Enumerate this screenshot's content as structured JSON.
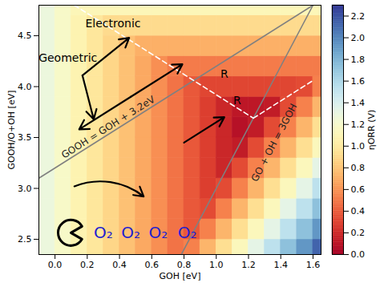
{
  "chart_data": {
    "type": "heatmap",
    "x_label": "GOH [eV]",
    "y_label": "GOOH/O+OH [eV]",
    "xlim": [
      -0.1,
      1.65
    ],
    "ylim": [
      2.35,
      4.8
    ],
    "xticks": [
      {
        "value": 0,
        "label": "0.0"
      },
      {
        "value": 0.2,
        "label": "0.2"
      },
      {
        "value": 0.4,
        "label": "0.4"
      },
      {
        "value": 0.6,
        "label": "0.6"
      },
      {
        "value": 0.8,
        "label": "0.8"
      },
      {
        "value": 1,
        "label": "1.0"
      },
      {
        "value": 1.2,
        "label": "1.2"
      },
      {
        "value": 1.4,
        "label": "1.4"
      },
      {
        "value": 1.6,
        "label": "1.6"
      }
    ],
    "yticks": [
      {
        "value": 2.5,
        "label": "2.5"
      },
      {
        "value": 3,
        "label": "3.0"
      },
      {
        "value": 3.5,
        "label": "3.5"
      },
      {
        "value": 4,
        "label": "4.0"
      },
      {
        "value": 4.5,
        "label": "4.5"
      }
    ],
    "color": "RdYlBu",
    "heatmap": {
      "x_edges": [
        -0.1,
        0.0,
        0.1,
        0.2,
        0.3,
        0.4,
        0.5,
        0.6,
        0.7,
        0.8,
        0.9,
        1.0,
        1.1,
        1.2,
        1.3,
        1.4,
        1.5,
        1.6,
        1.7
      ],
      "y_edges": [
        2.3,
        2.5,
        2.7,
        2.9,
        3.1,
        3.3,
        3.5,
        3.7,
        3.9,
        4.1,
        4.3,
        4.5,
        4.7,
        4.9
      ],
      "values": [
        [
          1.28,
          1.18,
          1.08,
          0.98,
          0.88,
          0.78,
          0.68,
          0.58,
          0.48,
          0.53,
          0.73,
          0.93,
          1.13,
          1.33,
          1.53,
          1.73,
          1.93,
          2.13
        ],
        [
          1.28,
          1.18,
          1.08,
          0.98,
          0.88,
          0.78,
          0.68,
          0.58,
          0.48,
          0.38,
          0.53,
          0.73,
          0.93,
          1.13,
          1.33,
          1.53,
          1.73,
          1.93
        ],
        [
          1.28,
          1.18,
          1.08,
          0.98,
          0.88,
          0.78,
          0.68,
          0.58,
          0.48,
          0.38,
          0.33,
          0.53,
          0.73,
          0.93,
          1.13,
          1.33,
          1.53,
          1.73
        ],
        [
          1.28,
          1.18,
          1.08,
          0.98,
          0.88,
          0.78,
          0.68,
          0.58,
          0.48,
          0.38,
          0.28,
          0.33,
          0.53,
          0.73,
          0.93,
          1.13,
          1.33,
          1.53
        ],
        [
          1.28,
          1.18,
          1.08,
          0.98,
          0.88,
          0.78,
          0.68,
          0.58,
          0.48,
          0.38,
          0.28,
          0.18,
          0.33,
          0.53,
          0.73,
          0.93,
          1.13,
          1.33
        ],
        [
          1.28,
          1.18,
          1.08,
          0.98,
          0.88,
          0.78,
          0.68,
          0.58,
          0.48,
          0.38,
          0.28,
          0.18,
          0.13,
          0.33,
          0.53,
          0.73,
          0.93,
          1.13
        ],
        [
          1.28,
          1.18,
          1.08,
          0.98,
          0.88,
          0.78,
          0.68,
          0.58,
          0.48,
          0.38,
          0.28,
          0.18,
          0.08,
          0.13,
          0.33,
          0.53,
          0.73,
          0.93
        ],
        [
          1.28,
          1.18,
          1.08,
          0.98,
          0.88,
          0.78,
          0.68,
          0.58,
          0.48,
          0.38,
          0.28,
          0.18,
          0.11,
          0.11,
          0.13,
          0.33,
          0.53,
          0.73
        ],
        [
          1.28,
          1.18,
          1.08,
          0.98,
          0.88,
          0.78,
          0.68,
          0.58,
          0.48,
          0.38,
          0.31,
          0.31,
          0.31,
          0.31,
          0.31,
          0.31,
          0.33,
          0.53
        ],
        [
          1.28,
          1.18,
          1.08,
          0.98,
          0.88,
          0.78,
          0.68,
          0.58,
          0.51,
          0.51,
          0.51,
          0.51,
          0.51,
          0.51,
          0.51,
          0.51,
          0.51,
          0.51
        ],
        [
          1.28,
          1.18,
          1.08,
          0.98,
          0.88,
          0.78,
          0.71,
          0.71,
          0.71,
          0.71,
          0.71,
          0.71,
          0.71,
          0.71,
          0.71,
          0.71,
          0.71,
          0.71
        ],
        [
          1.28,
          1.18,
          1.08,
          0.98,
          0.91,
          0.91,
          0.91,
          0.91,
          0.91,
          0.91,
          0.91,
          0.91,
          0.91,
          0.91,
          0.91,
          0.91,
          0.91,
          0.91
        ],
        [
          1.28,
          1.18,
          1.11,
          1.11,
          1.11,
          1.11,
          1.11,
          1.11,
          1.11,
          1.11,
          1.11,
          1.11,
          1.11,
          1.11,
          1.11,
          1.11,
          1.11,
          1.11
        ]
      ]
    },
    "colorbar": {
      "label": "ηORR (V)",
      "range": [
        0,
        2.3
      ],
      "ticks": [
        {
          "value": 0,
          "label": "0.0"
        },
        {
          "value": 0.2,
          "label": "0.2"
        },
        {
          "value": 0.4,
          "label": "0.4"
        },
        {
          "value": 0.6,
          "label": "0.6"
        },
        {
          "value": 0.8,
          "label": "0.8"
        },
        {
          "value": 1,
          "label": "1.0"
        },
        {
          "value": 1.2,
          "label": "1.2"
        },
        {
          "value": 1.4,
          "label": "1.4"
        },
        {
          "value": 1.6,
          "label": "1.6"
        },
        {
          "value": 1.8,
          "label": "1.8"
        },
        {
          "value": 2,
          "label": "2.0"
        },
        {
          "value": 2.2,
          "label": "2.2"
        }
      ]
    },
    "lines": [
      {
        "x": [
          -0.1,
          1.6
        ],
        "y": [
          3.1,
          4.8
        ],
        "color": "#808080",
        "line_style": "solid",
        "label": {
          "text": "GOOH = GOH + 3.2eV",
          "x": 0.33,
          "y": 3.6
        }
      },
      {
        "x": [
          0.7833,
          1.6
        ],
        "y": [
          2.35,
          4.8
        ],
        "color": "#808080",
        "line_style": "solid",
        "label": {
          "text": "GO + OH = 3GOH",
          "x": 1.36,
          "y": 3.45
        }
      },
      {
        "x": [
          0.12,
          1.23
        ],
        "y": [
          4.8,
          3.69
        ],
        "color": "#ffffff",
        "line_style": "dashed"
      },
      {
        "x": [
          1.23,
          1.6
        ],
        "y": [
          3.69,
          4.06
        ],
        "color": "#ffffff",
        "line_style": "dashed"
      }
    ],
    "arrows": [
      {
        "from": [
          0.17,
          4.11
        ],
        "to": [
          0.46,
          4.48
        ],
        "line_style": "straight"
      },
      {
        "from": [
          0.17,
          4.11
        ],
        "to": [
          0.24,
          3.68
        ],
        "line_style": "straight"
      },
      {
        "from": [
          0.47,
          3.9
        ],
        "to": [
          0.15,
          3.58
        ],
        "line_style": "straight"
      },
      {
        "from": [
          0.47,
          3.9
        ],
        "to": [
          0.79,
          4.22
        ],
        "line_style": "straight"
      },
      {
        "from": [
          0.12,
          3.02
        ],
        "to": [
          0.55,
          2.92
        ],
        "line_style": "curved"
      },
      {
        "from": [
          0.8,
          3.45
        ],
        "to": [
          1.05,
          3.7
        ],
        "line_style": "straight"
      }
    ],
    "annotations": [
      {
        "text": "Geometric",
        "x": 0.08,
        "y": 4.28
      },
      {
        "text": "Electronic",
        "x": 0.36,
        "y": 4.62
      },
      {
        "text": "R",
        "x": 1.05,
        "y": 4.12
      },
      {
        "text": "R",
        "x": 1.13,
        "y": 3.86
      },
      {
        "text": "O₂",
        "x": 0.3,
        "y": 2.56,
        "color": "#2020d0"
      },
      {
        "text": "O₂",
        "x": 0.47,
        "y": 2.56,
        "color": "#2020d0"
      },
      {
        "text": "O₂",
        "x": 0.64,
        "y": 2.56,
        "color": "#2020d0"
      },
      {
        "text": "O₂",
        "x": 0.82,
        "y": 2.56,
        "color": "#2020d0"
      }
    ]
  }
}
